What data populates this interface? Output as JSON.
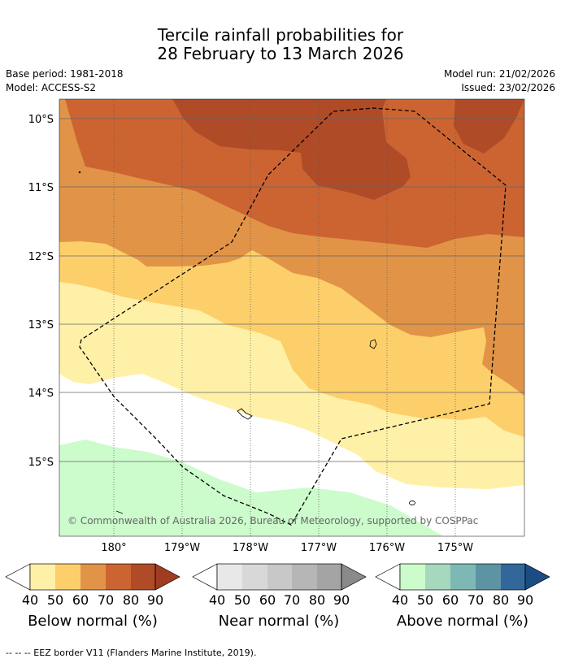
{
  "header": {
    "title_line1": "Tercile rainfall probabilities for",
    "title_line2": "28 February to 13 March 2026",
    "base_period": "Base period: 1981-2018",
    "model": "Model: ACCESS-S2",
    "model_run": "Model run: 21/02/2026",
    "issued": "Issued: 23/02/2026"
  },
  "map": {
    "lat_labels": [
      "10°S",
      "11°S",
      "12°S",
      "13°S",
      "14°S",
      "15°S"
    ],
    "lon_labels": [
      "180°",
      "179°W",
      "178°W",
      "177°W",
      "176°W",
      "175°W"
    ],
    "copyright": "© Commonwealth of Australia 2026, Bureau of Meteorology, supported by COSPPac",
    "colors": {
      "below_40": "#fff0a8",
      "below_50": "#fdcf6a",
      "below_60": "#e19447",
      "below_70": "#cc6432",
      "below_80": "#b04b27",
      "above_40": "#ccfbcc"
    }
  },
  "legend": {
    "ticks": [
      "40",
      "50",
      "60",
      "70",
      "80",
      "90"
    ],
    "below": {
      "label": "Below normal (%)",
      "colors": [
        "#fff0a8",
        "#fdcf6a",
        "#e19447",
        "#cc6432",
        "#b04b27",
        "#a03c22"
      ]
    },
    "near": {
      "label": "Near normal (%)",
      "colors": [
        "#e8e8e8",
        "#d8d8d8",
        "#c8c8c8",
        "#b6b6b6",
        "#a4a4a4",
        "#8a8a8a"
      ]
    },
    "above": {
      "label": "Above normal (%)",
      "colors": [
        "#ccfbcc",
        "#a6d8be",
        "#7eb8b4",
        "#5c94a4",
        "#32679a",
        "#1b4c84"
      ]
    }
  },
  "footnote": "--  --  -- EEZ border V11 (Flanders Marine Institute, 2019)."
}
